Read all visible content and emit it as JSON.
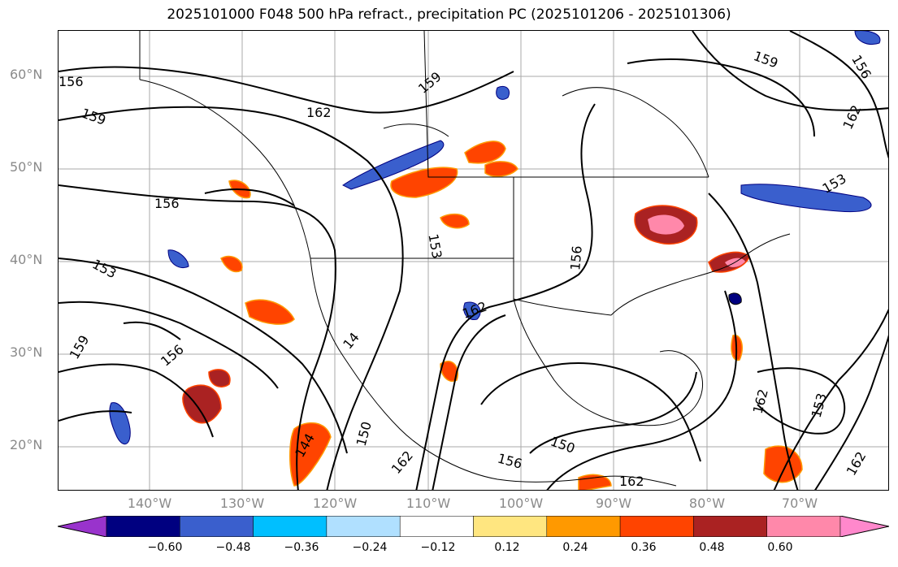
{
  "title": "2025101000 F048 500 hPa refract., precipitation PC (2025101206 - 2025101306)",
  "lat_labels": [
    "60°N",
    "50°N",
    "40°N",
    "30°N",
    "20°N"
  ],
  "lon_labels": [
    "140°W",
    "130°W",
    "120°W",
    "110°W",
    "100°W",
    "90°W",
    "80°W",
    "70°W"
  ],
  "colorbar": {
    "tick_labels": [
      "−0.60",
      "−0.48",
      "−0.36",
      "−0.24",
      "−0.12",
      "0.12",
      "0.24",
      "0.36",
      "0.48",
      "0.60"
    ],
    "colors": [
      "#9933cc",
      "#000080",
      "#3a5fcd",
      "#00bfff",
      "#b0e0ff",
      "#ffffff",
      "#ffe680",
      "#ff9900",
      "#ff4400",
      "#aa2222",
      "#ff88aa",
      "#ff88cc"
    ]
  },
  "contour_labels": [
    "159",
    "162",
    "156",
    "153",
    "159",
    "156",
    "14",
    "144",
    "150",
    "162",
    "150",
    "156",
    "162",
    "153",
    "162",
    "159",
    "162",
    "159",
    "156",
    "153",
    "162",
    "153",
    "156",
    "162",
    "156"
  ]
}
